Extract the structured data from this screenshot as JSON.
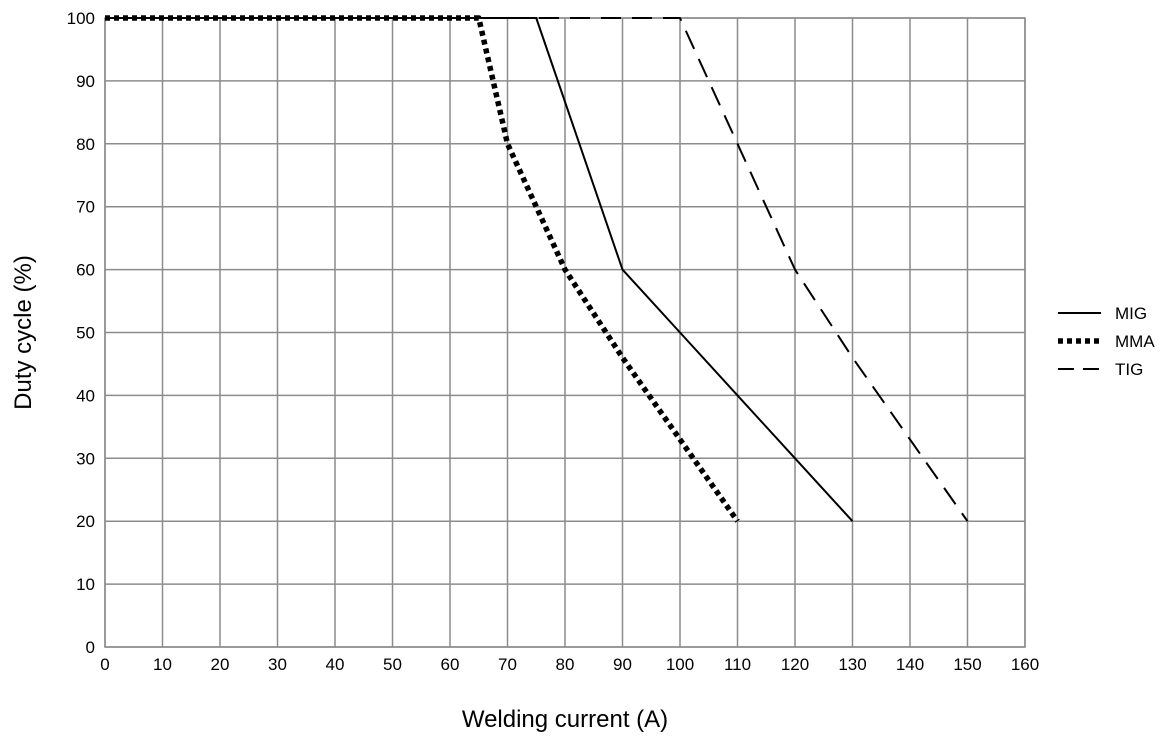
{
  "chart_data": {
    "type": "line",
    "title": "",
    "xlabel": "Welding current (A)",
    "ylabel": "Duty cycle (%)",
    "xlim": [
      0,
      160
    ],
    "ylim": [
      0,
      100
    ],
    "x_ticks": [
      0,
      10,
      20,
      30,
      40,
      50,
      60,
      70,
      80,
      90,
      100,
      110,
      120,
      130,
      140,
      150,
      160
    ],
    "y_ticks": [
      0,
      10,
      20,
      30,
      40,
      50,
      60,
      70,
      80,
      90,
      100
    ],
    "grid": true,
    "legend_position": "right",
    "series": [
      {
        "name": "MIG",
        "style": "solid",
        "x": [
          0,
          75,
          90,
          100,
          110,
          120,
          130
        ],
        "y": [
          100,
          100,
          60,
          50,
          40,
          30,
          20
        ]
      },
      {
        "name": "MMA",
        "style": "dotted",
        "x": [
          0,
          65,
          70,
          75,
          80,
          90,
          100,
          110
        ],
        "y": [
          100,
          100,
          80,
          70,
          60,
          46,
          33,
          20
        ]
      },
      {
        "name": "TIG",
        "style": "dashed",
        "x": [
          0,
          100,
          110,
          120,
          130,
          140,
          150
        ],
        "y": [
          100,
          100,
          80,
          60,
          46,
          33,
          20
        ]
      }
    ],
    "colors": {
      "line": "#000000",
      "grid": "#8c8c8c"
    }
  }
}
